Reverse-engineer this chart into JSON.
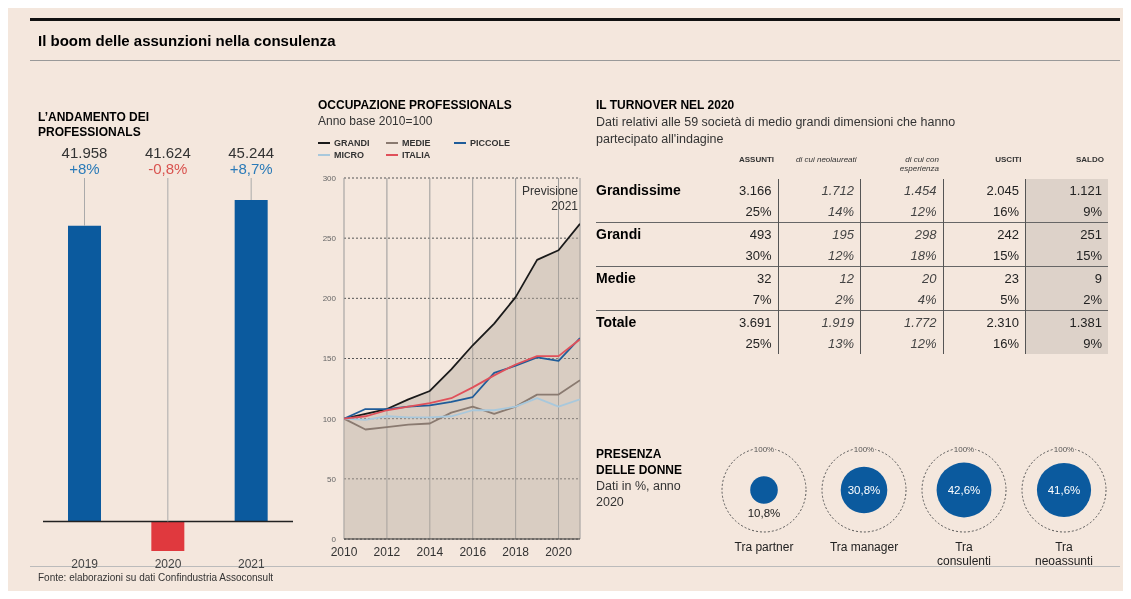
{
  "chart_data": [
    {
      "type": "other",
      "title": "Il boom delle assunzioni nella consulenza",
      "annotations": [
        "Fonte: elaborazioni su dati Confindustria Assoconsult"
      ]
    },
    {
      "type": "bar",
      "title": "L’ANDAMENTO DEI PROFESSIONALS",
      "categories": [
        "2019",
        "2020",
        "2021"
      ],
      "values": [
        8,
        -0.8,
        8.7
      ],
      "colors": [
        "#0b5a9e",
        "#e0393e",
        "#0b5a9e"
      ],
      "value_labels": [
        "+8%",
        "-0,8%",
        "+8,7%"
      ],
      "annotations": [
        "41.958",
        "41.624",
        "45.244"
      ]
    },
    {
      "type": "line",
      "title": "OCCUPAZIONE PROFESSIONALS",
      "subtitle": "Anno base 2010=100",
      "x": [
        2010,
        2011,
        2012,
        2013,
        2014,
        2015,
        2016,
        2017,
        2018,
        2019,
        2020,
        2021
      ],
      "series": [
        {
          "name": "GRANDI",
          "type": "area",
          "color": "#1a1a1a",
          "values": [
            100,
            104,
            108,
            116,
            123,
            141,
            161,
            179,
            201,
            232,
            240,
            262
          ]
        },
        {
          "name": "MEDIE",
          "color": "#8a7a70",
          "values": [
            100,
            91,
            93,
            95,
            96,
            105,
            110,
            104,
            110,
            120,
            120,
            132
          ]
        },
        {
          "name": "PICCOLE",
          "color": "#1f5c99",
          "values": [
            100,
            108,
            108,
            110,
            111,
            114,
            118,
            138,
            144,
            151,
            148,
            167
          ]
        },
        {
          "name": "MICRO",
          "color": "#a8c8dc",
          "values": [
            100,
            99,
            102,
            101,
            101,
            102,
            107,
            107,
            110,
            117,
            110,
            116
          ]
        },
        {
          "name": "ITALIA",
          "color": "#e0505a",
          "values": [
            100,
            102,
            107,
            110,
            113,
            117,
            126,
            136,
            145,
            152,
            152,
            166
          ]
        }
      ],
      "xlim": [
        2010,
        2021
      ],
      "xticks": [
        2010,
        2012,
        2014,
        2016,
        2018,
        2020
      ],
      "ylim": [
        0,
        300
      ],
      "yticks": [
        0,
        50,
        100,
        150,
        200,
        250,
        300
      ],
      "grid": true,
      "legend": "top left",
      "annotations": [
        "Previsione 2021"
      ]
    },
    {
      "type": "other",
      "title": "IL TURNOVER NEL 2020",
      "subtitle": "Dati relativi alle 59 società di medio grandi dimensioni che hanno partecipato all'indagine",
      "categories": [
        "ASSUNTI",
        "di cui neolaureati",
        "di cui con esperienza",
        "USCITI",
        "SALDO"
      ],
      "y_categories": [
        "Grandissime",
        null,
        "Grandi",
        null,
        "Medie",
        null,
        "Totale",
        null
      ],
      "cell_labels": [
        [
          "3.166",
          "1.712",
          "1.454",
          "2.045",
          "1.121"
        ],
        [
          "25%",
          "14%",
          "12%",
          "16%",
          "9%"
        ],
        [
          "493",
          "195",
          "298",
          "242",
          "251"
        ],
        [
          "30%",
          "12%",
          "18%",
          "15%",
          "15%"
        ],
        [
          "32",
          "12",
          "20",
          "23",
          "9"
        ],
        [
          "7%",
          "2%",
          "4%",
          "5%",
          "2%"
        ],
        [
          "3.691",
          "1.919",
          "1.772",
          "2.310",
          "1.381"
        ],
        [
          "25%",
          "13%",
          "12%",
          "16%",
          "9%"
        ]
      ]
    },
    {
      "type": "other",
      "title": "PRESENZA DELLE DONNE",
      "subtitle": "Dati in %, anno 2020",
      "categories": [
        "Tra partner",
        "Tra manager",
        "Tra consulenti",
        "Tra neoassunti"
      ],
      "values": [
        10.8,
        30.8,
        42.6,
        41.6
      ],
      "value_labels": [
        "10,8%",
        "30,8%",
        "42,6%",
        "41,6%"
      ],
      "color": "#0b5a9e",
      "annotations": [
        {
          "text": "100%",
          "x": "Tra partner"
        },
        {
          "text": "100%",
          "x": "Tra manager"
        },
        {
          "text": "100%",
          "x": "Tra consulenti"
        },
        {
          "text": "100%",
          "x": "Tra neoassunti"
        }
      ]
    }
  ]
}
